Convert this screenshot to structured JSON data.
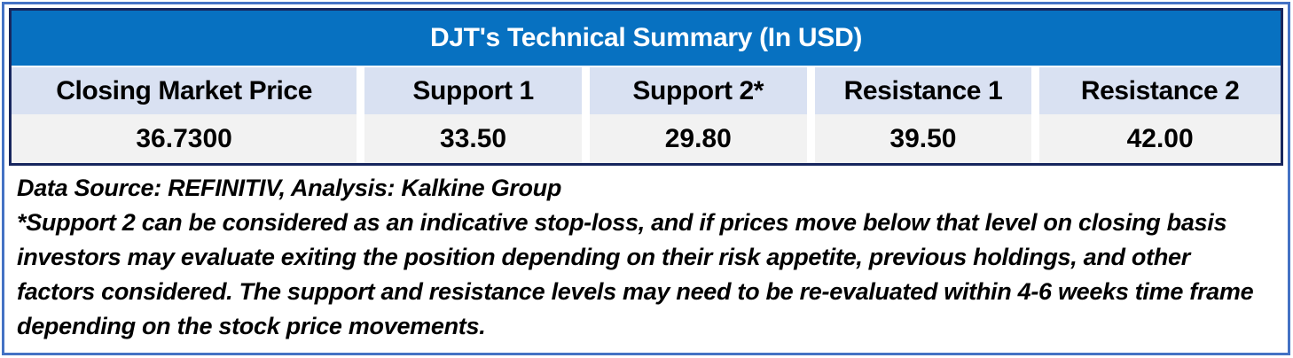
{
  "table": {
    "title": "DJT's Technical Summary (In USD)",
    "columns": [
      "Closing Market Price",
      "Support 1",
      "Support 2*",
      "Resistance 1",
      "Resistance 2"
    ],
    "values": [
      "36.7300",
      "33.50",
      "29.80",
      "39.50",
      "42.00"
    ]
  },
  "footnotes": {
    "source": "Data Source: REFINITIV, Analysis: Kalkine Group",
    "note_lines": [
      "*Support 2 can be considered as an indicative stop-loss, and if prices move below that level on closing basis",
      "investors may evaluate exiting the position depending on their risk appetite, previous holdings, and other",
      "factors considered. The support and resistance levels may need to be re-evaluated within 4-6 weeks time frame",
      "depending on the stock price movements."
    ]
  },
  "chart_data": {
    "type": "table",
    "title": "DJT's Technical Summary (In USD)",
    "ticker": "DJT",
    "currency": "USD",
    "columns": [
      "Closing Market Price",
      "Support 1",
      "Support 2*",
      "Resistance 1",
      "Resistance 2"
    ],
    "rows": [
      [
        "36.7300",
        "33.50",
        "29.80",
        "39.50",
        "42.00"
      ]
    ],
    "values": {
      "closing_market_price": 36.73,
      "support_1": 33.5,
      "support_2": 29.8,
      "resistance_1": 39.5,
      "resistance_2": 42.0
    },
    "footnote_source": "Data Source: REFINITIV, Analysis: Kalkine Group",
    "footnote": "*Support 2 can be considered as an indicative stop-loss, and if prices move below that level on closing basis investors may evaluate exiting the position depending on their risk appetite, previous holdings, and other factors considered. The support and resistance levels may need to be re-evaluated within 4-6 weeks time frame depending on the stock price movements."
  },
  "theme": {
    "outer_border": "#4472C4",
    "table_border": "#17265E",
    "title_bg": "#0771C1",
    "title_text": "#FFFFFF",
    "header_bg": "#D9E1F2",
    "value_bg": "#F2F2F2",
    "text_color": "#000000"
  }
}
